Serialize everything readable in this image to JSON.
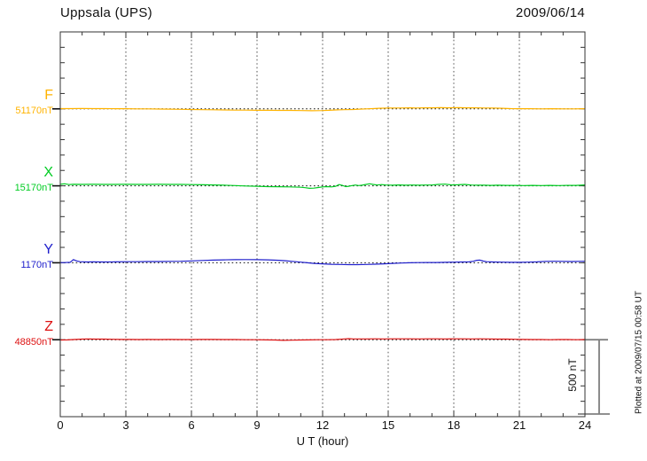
{
  "header": {
    "station_title": "Uppsala (UPS)",
    "date": "2009/06/14"
  },
  "axes": {
    "xlabel": "U T (hour)",
    "x_tick_labels": [
      "0",
      "3",
      "6",
      "9",
      "12",
      "15",
      "18",
      "21",
      "24"
    ]
  },
  "scale_bar": {
    "label": "500 nT",
    "span_nT": 500
  },
  "footer_note": "Plotted at 2009/07/15 00:58 UT",
  "colors": {
    "frame": "#333333",
    "grid": "#555555",
    "baseline": "#111111",
    "scalebar": "#808080"
  },
  "chart_data": {
    "type": "line",
    "title": "Uppsala (UPS)",
    "subtitle": "2009/06/14",
    "xlabel": "U T (hour)",
    "x_range": [
      0,
      24
    ],
    "x_ticks": [
      0,
      3,
      6,
      9,
      12,
      15,
      18,
      21,
      24
    ],
    "x_tick_labels": [
      "0",
      "3",
      "6",
      "9",
      "12",
      "15",
      "18",
      "21",
      "24"
    ],
    "grid": "dotted vertical at 3-hour marks, dotted horizontal baselines per trace",
    "scale_bar_nT": 500,
    "series": [
      {
        "label": "F",
        "baseline_label": "51170nT",
        "baseline_nT": 51170,
        "color": "#FFB300",
        "points": [
          [
            0,
            2
          ],
          [
            0.5,
            2
          ],
          [
            1,
            3
          ],
          [
            1.5,
            2
          ],
          [
            2,
            2
          ],
          [
            2.5,
            1
          ],
          [
            3,
            1
          ],
          [
            3.5,
            0
          ],
          [
            4,
            0
          ],
          [
            4.5,
            -1
          ],
          [
            5,
            -2
          ],
          [
            5.5,
            -3
          ],
          [
            6,
            -4
          ],
          [
            6.5,
            -5
          ],
          [
            7,
            -6
          ],
          [
            7.5,
            -7
          ],
          [
            8,
            -8
          ],
          [
            8.5,
            -8
          ],
          [
            9,
            -9
          ],
          [
            9.5,
            -9
          ],
          [
            10,
            -10
          ],
          [
            10.5,
            -10
          ],
          [
            11,
            -11
          ],
          [
            11.5,
            -12
          ],
          [
            12,
            -11
          ],
          [
            12.3,
            -9
          ],
          [
            12.6,
            -7
          ],
          [
            13,
            -5
          ],
          [
            13.4,
            -4
          ],
          [
            13.7,
            -2
          ],
          [
            14,
            0
          ],
          [
            14.3,
            2
          ],
          [
            14.6,
            4
          ],
          [
            15,
            5
          ],
          [
            15.5,
            6
          ],
          [
            16,
            7
          ],
          [
            16.3,
            6
          ],
          [
            16.6,
            7
          ],
          [
            17,
            7
          ],
          [
            17.4,
            8
          ],
          [
            17.8,
            7
          ],
          [
            18.2,
            8
          ],
          [
            18.6,
            7
          ],
          [
            19,
            7
          ],
          [
            19.4,
            6
          ],
          [
            19.8,
            5
          ],
          [
            20.2,
            4
          ],
          [
            20.6,
            2
          ],
          [
            21,
            1
          ],
          [
            21.5,
            1
          ],
          [
            22,
            0
          ],
          [
            22.5,
            1
          ],
          [
            23,
            0
          ],
          [
            23.5,
            0
          ],
          [
            24,
            1
          ]
        ]
      },
      {
        "label": "X",
        "baseline_label": "15170nT",
        "baseline_nT": 15170,
        "color": "#00CC22",
        "points": [
          [
            0,
            10
          ],
          [
            0.2,
            13
          ],
          [
            0.4,
            8
          ],
          [
            0.6,
            10
          ],
          [
            1,
            9
          ],
          [
            1.5,
            10
          ],
          [
            2,
            9
          ],
          [
            2.5,
            9
          ],
          [
            3,
            10
          ],
          [
            3.5,
            9
          ],
          [
            4,
            9
          ],
          [
            4.5,
            10
          ],
          [
            5,
            9
          ],
          [
            5.5,
            9
          ],
          [
            6,
            8
          ],
          [
            6.5,
            7
          ],
          [
            7,
            6
          ],
          [
            7.5,
            4
          ],
          [
            8,
            2
          ],
          [
            8.5,
            -1
          ],
          [
            9,
            -3
          ],
          [
            9.5,
            -5
          ],
          [
            10,
            -6
          ],
          [
            10.5,
            -7
          ],
          [
            11,
            -9
          ],
          [
            11.2,
            -12
          ],
          [
            11.4,
            -16
          ],
          [
            11.6,
            -15
          ],
          [
            11.8,
            -11
          ],
          [
            12,
            -7
          ],
          [
            12.2,
            -5
          ],
          [
            12.4,
            -7
          ],
          [
            12.6,
            -3
          ],
          [
            12.75,
            8
          ],
          [
            12.9,
            3
          ],
          [
            13.05,
            -5
          ],
          [
            13.2,
            -3
          ],
          [
            13.35,
            2
          ],
          [
            13.5,
            5
          ],
          [
            13.65,
            2
          ],
          [
            13.8,
            4
          ],
          [
            14,
            9
          ],
          [
            14.15,
            13
          ],
          [
            14.3,
            9
          ],
          [
            14.5,
            5
          ],
          [
            14.7,
            8
          ],
          [
            14.9,
            5
          ],
          [
            15.2,
            4
          ],
          [
            15.5,
            6
          ],
          [
            15.8,
            4
          ],
          [
            16.1,
            5
          ],
          [
            16.4,
            4
          ],
          [
            16.7,
            5
          ],
          [
            17,
            5
          ],
          [
            17.3,
            9
          ],
          [
            17.6,
            11
          ],
          [
            17.9,
            6
          ],
          [
            18.2,
            7
          ],
          [
            18.5,
            9
          ],
          [
            18.8,
            5
          ],
          [
            19.1,
            4
          ],
          [
            19.4,
            4
          ],
          [
            19.7,
            3
          ],
          [
            20,
            4
          ],
          [
            20.4,
            3
          ],
          [
            20.8,
            3
          ],
          [
            21.2,
            2
          ],
          [
            21.6,
            3
          ],
          [
            22,
            2
          ],
          [
            22.4,
            3
          ],
          [
            22.8,
            2
          ],
          [
            23.2,
            3
          ],
          [
            23.6,
            3
          ],
          [
            24,
            6
          ]
        ]
      },
      {
        "label": "Y",
        "baseline_label": "1170nT",
        "baseline_nT": 1170,
        "color": "#2020CC",
        "points": [
          [
            0,
            1
          ],
          [
            0.2,
            1
          ],
          [
            0.45,
            3
          ],
          [
            0.6,
            21
          ],
          [
            0.75,
            12
          ],
          [
            0.9,
            7
          ],
          [
            1.2,
            5
          ],
          [
            1.5,
            6
          ],
          [
            2,
            5
          ],
          [
            2.5,
            6
          ],
          [
            3,
            7
          ],
          [
            3.5,
            7
          ],
          [
            4,
            8
          ],
          [
            4.5,
            8
          ],
          [
            5,
            9
          ],
          [
            5.5,
            10
          ],
          [
            6,
            12
          ],
          [
            6.5,
            15
          ],
          [
            7,
            17
          ],
          [
            7.5,
            19
          ],
          [
            8,
            20
          ],
          [
            8.5,
            21
          ],
          [
            9,
            20
          ],
          [
            9.5,
            19
          ],
          [
            10,
            16
          ],
          [
            10.3,
            13
          ],
          [
            10.6,
            9
          ],
          [
            11,
            4
          ],
          [
            11.3,
            0
          ],
          [
            11.6,
            -4
          ],
          [
            12,
            -7
          ],
          [
            12.4,
            -10
          ],
          [
            12.8,
            -11
          ],
          [
            13.2,
            -12
          ],
          [
            13.6,
            -12
          ],
          [
            14,
            -11
          ],
          [
            14.4,
            -9
          ],
          [
            14.8,
            -7
          ],
          [
            15.2,
            -4
          ],
          [
            15.6,
            -2
          ],
          [
            16,
            0
          ],
          [
            16.4,
            1
          ],
          [
            16.8,
            2
          ],
          [
            17.2,
            2
          ],
          [
            17.6,
            3
          ],
          [
            18,
            4
          ],
          [
            18.4,
            5
          ],
          [
            18.7,
            6
          ],
          [
            18.9,
            10
          ],
          [
            19.05,
            16
          ],
          [
            19.2,
            17
          ],
          [
            19.35,
            11
          ],
          [
            19.5,
            7
          ],
          [
            19.8,
            5
          ],
          [
            20.2,
            4
          ],
          [
            20.6,
            3
          ],
          [
            21,
            3
          ],
          [
            21.4,
            4
          ],
          [
            21.8,
            6
          ],
          [
            22.2,
            9
          ],
          [
            22.6,
            10
          ],
          [
            23,
            9
          ],
          [
            23.4,
            8
          ],
          [
            23.7,
            9
          ],
          [
            24,
            10
          ]
        ]
      },
      {
        "label": "Z",
        "baseline_label": "48850nT",
        "baseline_nT": 48850,
        "color": "#DD1111",
        "points": [
          [
            0,
            -2
          ],
          [
            0.3,
            -1
          ],
          [
            0.6,
            1
          ],
          [
            1,
            4
          ],
          [
            1.3,
            5
          ],
          [
            1.6,
            4
          ],
          [
            2,
            4
          ],
          [
            2.4,
            3
          ],
          [
            2.8,
            2
          ],
          [
            3.2,
            2
          ],
          [
            3.6,
            1
          ],
          [
            4,
            2
          ],
          [
            4.5,
            1
          ],
          [
            5,
            2
          ],
          [
            5.5,
            1
          ],
          [
            6,
            1
          ],
          [
            6.5,
            2
          ],
          [
            7,
            2
          ],
          [
            7.5,
            1
          ],
          [
            8,
            1
          ],
          [
            8.5,
            0
          ],
          [
            9,
            0
          ],
          [
            9.4,
            -1
          ],
          [
            9.8,
            -2
          ],
          [
            10.2,
            -4
          ],
          [
            10.6,
            -3
          ],
          [
            11,
            -2
          ],
          [
            11.4,
            -1
          ],
          [
            11.8,
            0
          ],
          [
            12.2,
            0
          ],
          [
            12.6,
            1
          ],
          [
            13,
            5
          ],
          [
            13.2,
            7
          ],
          [
            13.4,
            5
          ],
          [
            13.7,
            5
          ],
          [
            14,
            5
          ],
          [
            14.4,
            6
          ],
          [
            14.8,
            5
          ],
          [
            15.2,
            6
          ],
          [
            15.6,
            6
          ],
          [
            16,
            6
          ],
          [
            16.4,
            5
          ],
          [
            16.8,
            6
          ],
          [
            17.2,
            6
          ],
          [
            17.6,
            5
          ],
          [
            18,
            6
          ],
          [
            18.4,
            6
          ],
          [
            18.8,
            5
          ],
          [
            19.2,
            6
          ],
          [
            19.6,
            5
          ],
          [
            20,
            4
          ],
          [
            20.4,
            4
          ],
          [
            20.8,
            3
          ],
          [
            21.2,
            2
          ],
          [
            21.6,
            1
          ],
          [
            22,
            1
          ],
          [
            22.4,
            0
          ],
          [
            22.8,
            1
          ],
          [
            23.2,
            1
          ],
          [
            23.6,
            0
          ],
          [
            24,
            1
          ]
        ]
      }
    ]
  }
}
